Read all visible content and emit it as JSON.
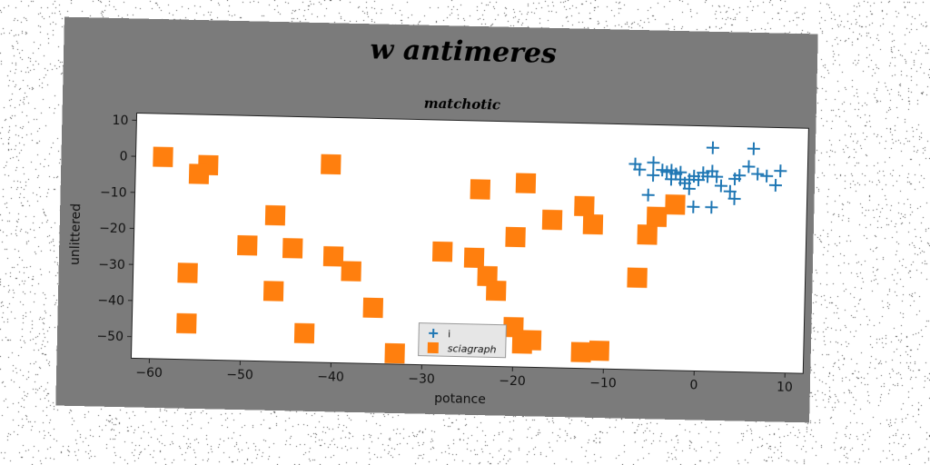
{
  "chart_data": {
    "type": "scatter",
    "title": "w antimeres",
    "subtitle": "matchotic",
    "xlabel": "potance",
    "ylabel": "unlittered",
    "xlim": [
      -62,
      12
    ],
    "ylim": [
      -56,
      12
    ],
    "xticks": [
      -60,
      -50,
      -40,
      -30,
      -20,
      -10,
      0,
      10
    ],
    "yticks": [
      10,
      0,
      -10,
      -20,
      -30,
      -40,
      -50
    ],
    "grid": false,
    "legend_position": "lower center",
    "series": [
      {
        "name": "i",
        "marker": "plus",
        "color": "#1f77b4",
        "points": [
          [
            -7,
            1
          ],
          [
            -6.5,
            -0.5
          ],
          [
            -5,
            1.5
          ],
          [
            -5,
            -2
          ],
          [
            -4,
            -0.5
          ],
          [
            -3.5,
            -1
          ],
          [
            -3,
            -0.5
          ],
          [
            -3,
            -3
          ],
          [
            -2.5,
            -1.5
          ],
          [
            -2,
            -3
          ],
          [
            -2,
            -1
          ],
          [
            -1.5,
            -4
          ],
          [
            -1,
            -3
          ],
          [
            -1,
            -5.5
          ],
          [
            -0.5,
            -2
          ],
          [
            0,
            -3
          ],
          [
            0.5,
            -1
          ],
          [
            1,
            -2
          ],
          [
            1.5,
            6
          ],
          [
            1.5,
            -0.5
          ],
          [
            2,
            -2
          ],
          [
            2.5,
            -4.5
          ],
          [
            3.5,
            -6
          ],
          [
            4,
            -2.5
          ],
          [
            4.5,
            -1.5
          ],
          [
            5.5,
            1
          ],
          [
            6,
            6
          ],
          [
            6.5,
            -1
          ],
          [
            7.5,
            -1.5
          ],
          [
            8.5,
            -4
          ],
          [
            9,
            0
          ],
          [
            -5.5,
            -7.5
          ],
          [
            -0.5,
            -10.5
          ],
          [
            1.5,
            -10.5
          ],
          [
            4,
            -8
          ]
        ]
      },
      {
        "name": "sciagraph",
        "marker": "square",
        "color": "#ff7f0e",
        "points": [
          [
            -59,
            0
          ],
          [
            -54,
            -2
          ],
          [
            -55,
            -4.5
          ],
          [
            -40.5,
            -1
          ],
          [
            -24,
            -7
          ],
          [
            -19,
            -5
          ],
          [
            -46.5,
            -15.5
          ],
          [
            -12.5,
            -11
          ],
          [
            -11.5,
            -16
          ],
          [
            -16,
            -15
          ],
          [
            -20,
            -20
          ],
          [
            -49.5,
            -24
          ],
          [
            -44.5,
            -24.5
          ],
          [
            -40,
            -26.5
          ],
          [
            -28,
            -24.5
          ],
          [
            -24.5,
            -26
          ],
          [
            -38,
            -30.5
          ],
          [
            -56,
            -32
          ],
          [
            -23,
            -31
          ],
          [
            -46.5,
            -36.5
          ],
          [
            -22,
            -35
          ],
          [
            -35.5,
            -40.5
          ],
          [
            -6.5,
            -30.5
          ],
          [
            -5.5,
            -18.5
          ],
          [
            -4.5,
            -13.5
          ],
          [
            -2.5,
            -10
          ],
          [
            -56,
            -46
          ],
          [
            -43,
            -48
          ],
          [
            -20,
            -45
          ],
          [
            -18,
            -48.5
          ],
          [
            -19,
            -49.5
          ],
          [
            -12.5,
            -51.5
          ],
          [
            -10.5,
            -51
          ],
          [
            -33,
            -53
          ]
        ]
      }
    ]
  }
}
